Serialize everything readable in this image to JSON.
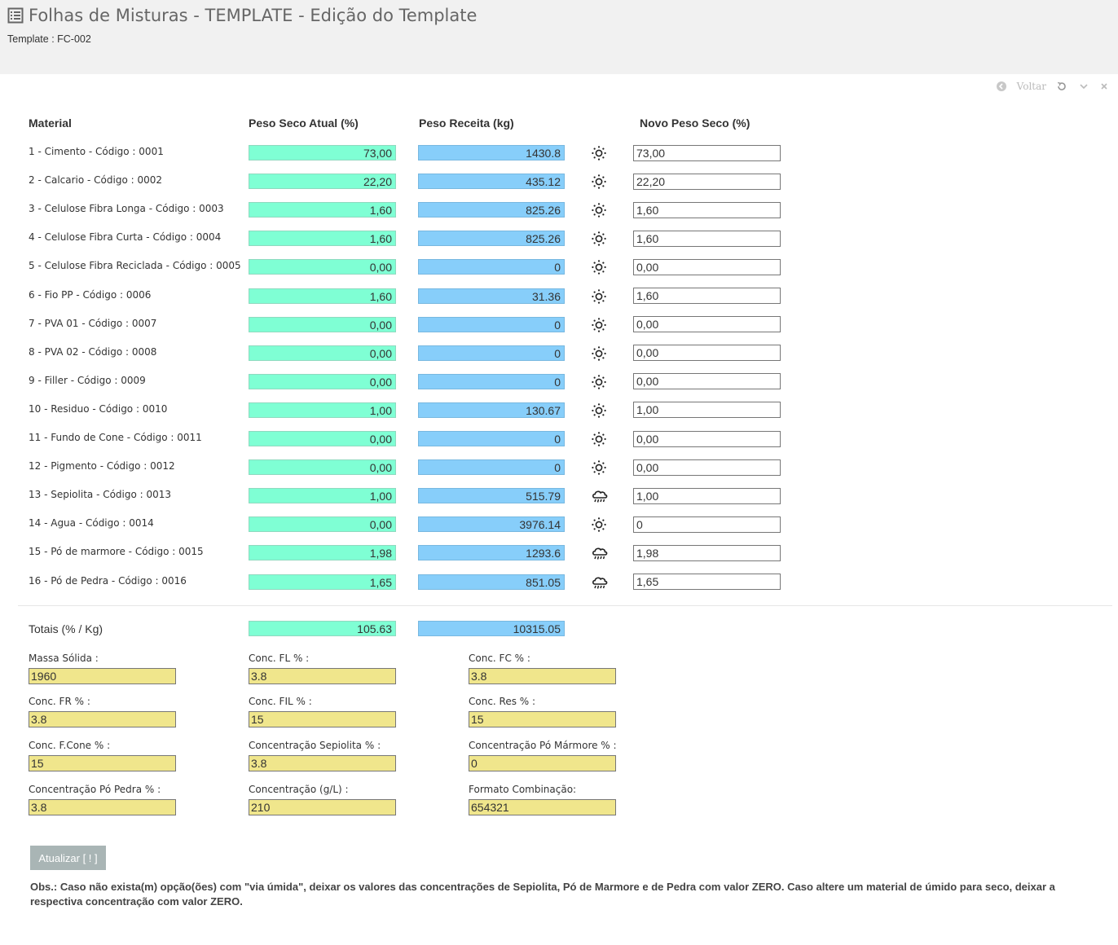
{
  "header": {
    "title": "Folhas de Misturas - TEMPLATE - Edição do Template",
    "subtitle": "Template : FC-002"
  },
  "tools": {
    "back_label": "Voltar"
  },
  "columns": {
    "material": "Material",
    "peso_seco_atual": "Peso Seco Atual (%)",
    "peso_receita": "Peso Receita (kg)",
    "novo_peso_seco": "Novo Peso Seco (%)"
  },
  "rows": [
    {
      "label": "1 - Cimento - Código : 0001",
      "peso_seco": "73,00",
      "peso_receita": "1430.8",
      "mode": "sun-icon",
      "novo": "73,00"
    },
    {
      "label": "2 - Calcario - Código : 0002",
      "peso_seco": "22,20",
      "peso_receita": "435.12",
      "mode": "sun-icon",
      "novo": "22,20"
    },
    {
      "label": "3 - Celulose Fibra Longa - Código : 0003",
      "peso_seco": "1,60",
      "peso_receita": "825.26",
      "mode": "sun-icon",
      "novo": "1,60"
    },
    {
      "label": "4 - Celulose Fibra Curta - Código : 0004",
      "peso_seco": "1,60",
      "peso_receita": "825.26",
      "mode": "sun-icon",
      "novo": "1,60"
    },
    {
      "label": "5 - Celulose Fibra Reciclada - Código : 0005",
      "peso_seco": "0,00",
      "peso_receita": "0",
      "mode": "sun-icon",
      "novo": "0,00"
    },
    {
      "label": "6 - Fio PP - Código : 0006",
      "peso_seco": "1,60",
      "peso_receita": "31.36",
      "mode": "sun-icon",
      "novo": "1,60"
    },
    {
      "label": "7 - PVA 01 - Código : 0007",
      "peso_seco": "0,00",
      "peso_receita": "0",
      "mode": "sun-icon",
      "novo": "0,00"
    },
    {
      "label": "8 - PVA 02 - Código : 0008",
      "peso_seco": "0,00",
      "peso_receita": "0",
      "mode": "sun-icon",
      "novo": "0,00"
    },
    {
      "label": "9 - Filler - Código : 0009",
      "peso_seco": "0,00",
      "peso_receita": "0",
      "mode": "sun-icon",
      "novo": "0,00"
    },
    {
      "label": "10 - Residuo - Código : 0010",
      "peso_seco": "1,00",
      "peso_receita": "130.67",
      "mode": "sun-icon",
      "novo": "1,00"
    },
    {
      "label": "11 - Fundo de Cone - Código : 0011",
      "peso_seco": "0,00",
      "peso_receita": "0",
      "mode": "sun-icon",
      "novo": "0,00"
    },
    {
      "label": "12 - Pigmento - Código : 0012",
      "peso_seco": "0,00",
      "peso_receita": "0",
      "mode": "sun-icon",
      "novo": "0,00"
    },
    {
      "label": "13 - Sepiolita - Código : 0013",
      "peso_seco": "1,00",
      "peso_receita": "515.79",
      "mode": "rain-cloud-icon",
      "novo": "1,00"
    },
    {
      "label": "14 - Agua - Código : 0014",
      "peso_seco": "0,00",
      "peso_receita": "3976.14",
      "mode": "sun-icon",
      "novo": "0"
    },
    {
      "label": "15 - Pó de marmore - Código : 0015",
      "peso_seco": "1,98",
      "peso_receita": "1293.6",
      "mode": "rain-cloud-icon",
      "novo": "1,98"
    },
    {
      "label": "16 - Pó de Pedra - Código : 0016",
      "peso_seco": "1,65",
      "peso_receita": "851.05",
      "mode": "rain-cloud-icon",
      "novo": "1,65"
    }
  ],
  "totals": {
    "label": "Totais (% / Kg)",
    "peso_seco": "105.63",
    "peso_receita": "10315.05"
  },
  "fields": [
    {
      "label": "Massa Sólida :",
      "value": "1960"
    },
    {
      "label": "Conc. FL % :",
      "value": "3.8"
    },
    {
      "label": "Conc. FC % :",
      "value": "3.8"
    },
    {
      "label": "Conc. FR % :",
      "value": "3.8"
    },
    {
      "label": "Conc. FIL % :",
      "value": "15"
    },
    {
      "label": "Conc. Res % :",
      "value": "15"
    },
    {
      "label": "Conc. F.Cone % :",
      "value": "15"
    },
    {
      "label": "Concentração Sepiolita % :",
      "value": "3.8"
    },
    {
      "label": "Concentração Pó Mármore % :",
      "value": "0"
    },
    {
      "label": "Concentração Pó Pedra % :",
      "value": "3.8"
    },
    {
      "label": "Concentração (g/L) :",
      "value": "210"
    },
    {
      "label": "Formato Combinação:",
      "value": "654321"
    }
  ],
  "update_button": "Atualizar [ ! ]",
  "obs": "Obs.: Caso não exista(m) opção(ões) com \"via úmida\", deixar os valores das concentrações de Sepiolita, Pó de Marmore e de Pedra com valor ZERO. Caso altere um material de úmido para seco, deixar a respectiva concentração com valor ZERO.",
  "colors": {
    "green": "#7fffd4",
    "blue": "#87cefa",
    "yellow": "#f0e68c"
  }
}
